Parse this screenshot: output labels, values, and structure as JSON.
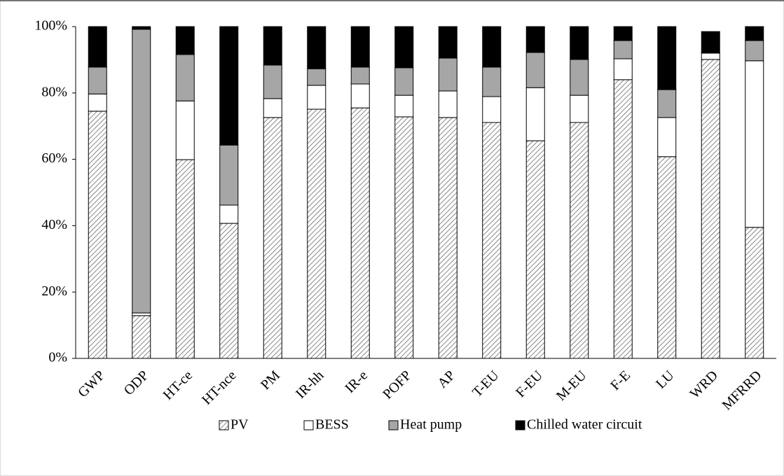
{
  "chart_data": {
    "type": "stacked_bar",
    "categories": [
      "GWP",
      "ODP",
      "HT-ce",
      "HT-nce",
      "PM",
      "IR-hh",
      "IR-e",
      "POFP",
      "AP",
      "T-EU",
      "F-EU",
      "M-EU",
      "F-E",
      "LU",
      "WRD",
      "MFRRD"
    ],
    "series": [
      {
        "name": "PV",
        "color": "#ffffff",
        "hatch": true,
        "values": [
          74.5,
          12.9,
          59.9,
          40.7,
          72.6,
          75.1,
          75.5,
          72.8,
          72.6,
          71.1,
          65.6,
          71.1,
          84.0,
          60.8,
          90.1,
          39.5
        ]
      },
      {
        "name": "BESS",
        "color": "#ffffff",
        "values": [
          5.2,
          0.8,
          17.7,
          5.5,
          5.7,
          7.2,
          7.2,
          6.5,
          8.0,
          7.8,
          16.0,
          8.2,
          6.3,
          11.8,
          1.9,
          50.2
        ]
      },
      {
        "name": "Heat pump",
        "color": "#a6a6a6",
        "values": [
          8.1,
          85.5,
          14.0,
          18.1,
          10.1,
          5.0,
          5.1,
          8.3,
          9.9,
          8.9,
          10.6,
          10.8,
          5.5,
          8.4,
          0.2,
          6.1
        ]
      },
      {
        "name": "Chilled water circuit",
        "color": "#000000",
        "values": [
          12.2,
          0.8,
          8.4,
          35.7,
          11.6,
          12.7,
          12.2,
          12.4,
          9.5,
          12.2,
          7.8,
          9.9,
          4.2,
          19.0,
          6.3,
          4.2
        ]
      }
    ],
    "ylim": [
      0,
      100
    ],
    "yticks": [
      {
        "value": 0,
        "label": "0%"
      },
      {
        "value": 20,
        "label": "20%"
      },
      {
        "value": 40,
        "label": "40%"
      },
      {
        "value": 60,
        "label": "60%"
      },
      {
        "value": 80,
        "label": "80%"
      },
      {
        "value": 100,
        "label": "100%"
      }
    ],
    "legend": "bottom"
  }
}
